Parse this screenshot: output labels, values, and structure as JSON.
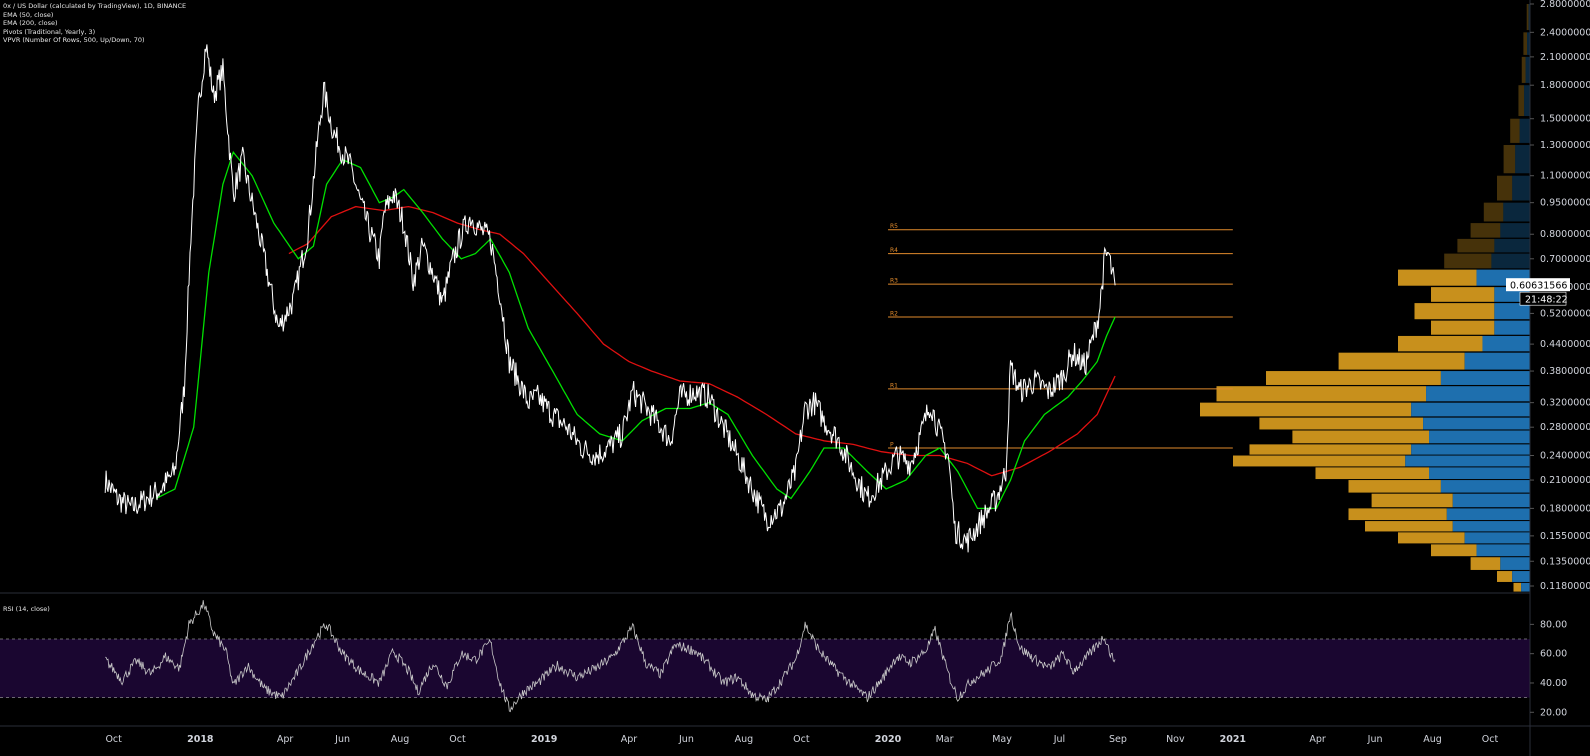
{
  "legend": {
    "symbol": "0x / US Dollar (calculated by TradingView), 1D, BINANCE",
    "ema50": "EMA (50, close)",
    "ema200": "EMA (200, close)",
    "pivots": "Pivots (Traditional, Yearly, 3)",
    "vpvr": "VPVR (Number Of Rows, 500, Up/Down, 70)",
    "rsi": "RSI (14, close)"
  },
  "colors": {
    "price": "#ffffff",
    "ema50": "#00e000",
    "ema200": "#e01010",
    "pivot": "#e08a2c",
    "vpvr_up": "#1e6fae",
    "vpvr_down": "#c8901c",
    "rsi_band": "#1a0630",
    "rsi_line": "#c8c8c8",
    "axis_text": "#d1d4dc",
    "current_price_bg": "#ffffff"
  },
  "chart_data": {
    "type": "line",
    "scale": "log",
    "y_ticks": [
      "2.80000000",
      "2.40000000",
      "2.10000000",
      "1.80000000",
      "1.50000000",
      "1.30000000",
      "1.10000000",
      "0.95000000",
      "0.80000000",
      "0.70000000",
      "0.60000000",
      "0.52000000",
      "0.44000000",
      "0.38000000",
      "0.32000000",
      "0.28000000",
      "0.24000000",
      "0.21000000",
      "0.18000000",
      "0.15500000",
      "0.13500000",
      "0.11800000"
    ],
    "x_ticks": [
      "Oct",
      "2018",
      "Apr",
      "Jun",
      "Aug",
      "Oct",
      "2019",
      "Apr",
      "Jun",
      "Aug",
      "Oct",
      "2020",
      "Mar",
      "May",
      "Jul",
      "Sep",
      "Nov",
      "2021",
      "Apr",
      "Jun",
      "Aug",
      "Oct"
    ],
    "current_price": "0.60631566",
    "countdown": "21:48:22",
    "ylim": [
      0.118,
      2.8
    ],
    "xlim": [
      "2017-09-20",
      "2021-10-20"
    ],
    "price_series": [
      [
        "2017-09-22",
        0.21
      ],
      [
        "2017-10-05",
        0.19
      ],
      [
        "2017-10-20",
        0.18
      ],
      [
        "2017-11-05",
        0.19
      ],
      [
        "2017-11-20",
        0.2
      ],
      [
        "2017-12-05",
        0.22
      ],
      [
        "2017-12-15",
        0.35
      ],
      [
        "2017-12-22",
        0.8
      ],
      [
        "2017-12-30",
        1.6
      ],
      [
        "2018-01-07",
        2.25
      ],
      [
        "2018-01-15",
        1.7
      ],
      [
        "2018-01-25",
        1.95
      ],
      [
        "2018-02-05",
        1.0
      ],
      [
        "2018-02-15",
        1.2
      ],
      [
        "2018-02-25",
        0.95
      ],
      [
        "2018-03-10",
        0.7
      ],
      [
        "2018-03-25",
        0.48
      ],
      [
        "2018-04-10",
        0.56
      ],
      [
        "2018-04-25",
        0.8
      ],
      [
        "2018-05-05",
        1.3
      ],
      [
        "2018-05-12",
        1.75
      ],
      [
        "2018-05-22",
        1.4
      ],
      [
        "2018-06-01",
        1.25
      ],
      [
        "2018-06-10",
        1.15
      ],
      [
        "2018-06-20",
        0.95
      ],
      [
        "2018-07-01",
        0.8
      ],
      [
        "2018-07-10",
        0.7
      ],
      [
        "2018-07-15",
        0.9
      ],
      [
        "2018-07-25",
        1.0
      ],
      [
        "2018-08-05",
        0.85
      ],
      [
        "2018-08-15",
        0.62
      ],
      [
        "2018-08-25",
        0.75
      ],
      [
        "2018-09-05",
        0.65
      ],
      [
        "2018-09-15",
        0.55
      ],
      [
        "2018-09-25",
        0.68
      ],
      [
        "2018-10-05",
        0.8
      ],
      [
        "2018-10-15",
        0.88
      ],
      [
        "2018-10-25",
        0.82
      ],
      [
        "2018-11-05",
        0.78
      ],
      [
        "2018-11-15",
        0.58
      ],
      [
        "2018-11-25",
        0.4
      ],
      [
        "2018-12-05",
        0.36
      ],
      [
        "2018-12-15",
        0.32
      ],
      [
        "2018-12-25",
        0.33
      ],
      [
        "2019-01-10",
        0.3
      ],
      [
        "2019-01-25",
        0.28
      ],
      [
        "2019-02-10",
        0.25
      ],
      [
        "2019-02-25",
        0.24
      ],
      [
        "2019-03-10",
        0.25
      ],
      [
        "2019-03-25",
        0.27
      ],
      [
        "2019-04-05",
        0.34
      ],
      [
        "2019-04-20",
        0.31
      ],
      [
        "2019-05-05",
        0.28
      ],
      [
        "2019-05-15",
        0.26
      ],
      [
        "2019-05-25",
        0.33
      ],
      [
        "2019-06-10",
        0.34
      ],
      [
        "2019-06-25",
        0.33
      ],
      [
        "2019-07-10",
        0.28
      ],
      [
        "2019-07-25",
        0.24
      ],
      [
        "2019-08-10",
        0.2
      ],
      [
        "2019-08-25",
        0.17
      ],
      [
        "2019-09-10",
        0.18
      ],
      [
        "2019-09-25",
        0.22
      ],
      [
        "2019-10-05",
        0.31
      ],
      [
        "2019-10-15",
        0.32
      ],
      [
        "2019-10-25",
        0.29
      ],
      [
        "2019-11-10",
        0.26
      ],
      [
        "2019-11-25",
        0.22
      ],
      [
        "2019-12-10",
        0.19
      ],
      [
        "2019-12-25",
        0.21
      ],
      [
        "2020-01-10",
        0.24
      ],
      [
        "2020-01-25",
        0.23
      ],
      [
        "2020-02-05",
        0.27
      ],
      [
        "2020-02-15",
        0.32
      ],
      [
        "2020-02-25",
        0.27
      ],
      [
        "2020-03-05",
        0.24
      ],
      [
        "2020-03-12",
        0.16
      ],
      [
        "2020-03-25",
        0.15
      ],
      [
        "2020-04-10",
        0.17
      ],
      [
        "2020-04-25",
        0.19
      ],
      [
        "2020-05-05",
        0.22
      ],
      [
        "2020-05-10",
        0.39
      ],
      [
        "2020-05-20",
        0.34
      ],
      [
        "2020-06-05",
        0.36
      ],
      [
        "2020-06-20",
        0.34
      ],
      [
        "2020-07-05",
        0.37
      ],
      [
        "2020-07-15",
        0.42
      ],
      [
        "2020-07-28",
        0.39
      ],
      [
        "2020-08-05",
        0.45
      ],
      [
        "2020-08-12",
        0.52
      ],
      [
        "2020-08-18",
        0.7
      ],
      [
        "2020-08-22",
        0.72
      ],
      [
        "2020-08-26",
        0.64
      ],
      [
        "2020-08-29",
        0.606
      ]
    ],
    "ema50_series": [
      [
        "2017-11-15",
        0.19
      ],
      [
        "2017-12-05",
        0.2
      ],
      [
        "2017-12-25",
        0.28
      ],
      [
        "2018-01-10",
        0.65
      ],
      [
        "2018-01-25",
        1.05
      ],
      [
        "2018-02-05",
        1.25
      ],
      [
        "2018-02-25",
        1.1
      ],
      [
        "2018-03-20",
        0.85
      ],
      [
        "2018-04-15",
        0.7
      ],
      [
        "2018-05-01",
        0.75
      ],
      [
        "2018-05-15",
        1.05
      ],
      [
        "2018-06-01",
        1.2
      ],
      [
        "2018-06-20",
        1.15
      ],
      [
        "2018-07-10",
        0.95
      ],
      [
        "2018-07-25",
        0.98
      ],
      [
        "2018-08-05",
        1.02
      ],
      [
        "2018-08-25",
        0.9
      ],
      [
        "2018-09-15",
        0.78
      ],
      [
        "2018-10-05",
        0.7
      ],
      [
        "2018-10-20",
        0.72
      ],
      [
        "2018-11-05",
        0.78
      ],
      [
        "2018-11-25",
        0.65
      ],
      [
        "2018-12-15",
        0.48
      ],
      [
        "2019-01-10",
        0.38
      ],
      [
        "2019-02-05",
        0.3
      ],
      [
        "2019-03-01",
        0.27
      ],
      [
        "2019-03-25",
        0.26
      ],
      [
        "2019-04-15",
        0.29
      ],
      [
        "2019-05-10",
        0.31
      ],
      [
        "2019-06-05",
        0.31
      ],
      [
        "2019-06-25",
        0.32
      ],
      [
        "2019-07-15",
        0.3
      ],
      [
        "2019-08-10",
        0.24
      ],
      [
        "2019-09-05",
        0.2
      ],
      [
        "2019-09-20",
        0.19
      ],
      [
        "2019-10-10",
        0.22
      ],
      [
        "2019-10-25",
        0.25
      ],
      [
        "2019-11-15",
        0.25
      ],
      [
        "2019-12-10",
        0.22
      ],
      [
        "2019-12-30",
        0.2
      ],
      [
        "2020-01-20",
        0.21
      ],
      [
        "2020-02-10",
        0.24
      ],
      [
        "2020-02-25",
        0.25
      ],
      [
        "2020-03-15",
        0.22
      ],
      [
        "2020-04-05",
        0.18
      ],
      [
        "2020-04-25",
        0.18
      ],
      [
        "2020-05-10",
        0.21
      ],
      [
        "2020-05-25",
        0.26
      ],
      [
        "2020-06-15",
        0.3
      ],
      [
        "2020-07-10",
        0.33
      ],
      [
        "2020-07-25",
        0.36
      ],
      [
        "2020-08-10",
        0.4
      ],
      [
        "2020-08-20",
        0.46
      ],
      [
        "2020-08-29",
        0.51
      ]
    ],
    "ema200_series": [
      [
        "2018-04-05",
        0.72
      ],
      [
        "2018-04-25",
        0.76
      ],
      [
        "2018-05-20",
        0.88
      ],
      [
        "2018-06-15",
        0.93
      ],
      [
        "2018-07-15",
        0.91
      ],
      [
        "2018-08-10",
        0.93
      ],
      [
        "2018-09-05",
        0.9
      ],
      [
        "2018-10-01",
        0.85
      ],
      [
        "2018-10-25",
        0.82
      ],
      [
        "2018-11-15",
        0.8
      ],
      [
        "2018-12-10",
        0.72
      ],
      [
        "2019-01-05",
        0.62
      ],
      [
        "2019-02-05",
        0.52
      ],
      [
        "2019-03-05",
        0.44
      ],
      [
        "2019-04-01",
        0.4
      ],
      [
        "2019-04-25",
        0.38
      ],
      [
        "2019-05-25",
        0.36
      ],
      [
        "2019-06-25",
        0.355
      ],
      [
        "2019-07-25",
        0.33
      ],
      [
        "2019-08-25",
        0.3
      ],
      [
        "2019-09-25",
        0.27
      ],
      [
        "2019-10-25",
        0.26
      ],
      [
        "2019-11-25",
        0.255
      ],
      [
        "2019-12-25",
        0.245
      ],
      [
        "2020-01-25",
        0.24
      ],
      [
        "2020-02-25",
        0.24
      ],
      [
        "2020-03-25",
        0.23
      ],
      [
        "2020-04-20",
        0.215
      ],
      [
        "2020-05-20",
        0.225
      ],
      [
        "2020-06-20",
        0.245
      ],
      [
        "2020-07-20",
        0.27
      ],
      [
        "2020-08-10",
        0.3
      ],
      [
        "2020-08-29",
        0.37
      ]
    ],
    "pivots": [
      {
        "label": "R5",
        "value": 0.82
      },
      {
        "label": "R4",
        "value": 0.72
      },
      {
        "label": "R3",
        "value": 0.61
      },
      {
        "label": "R2",
        "value": 0.51
      },
      {
        "label": "R1",
        "value": 0.345
      },
      {
        "label": "P",
        "value": 0.25
      }
    ],
    "pivot_range": [
      "2020-01-01",
      "2021-01-01"
    ],
    "rsi": {
      "y_ticks": [
        "80.00",
        "60.00",
        "40.00",
        "20.00"
      ],
      "band": [
        30,
        70
      ],
      "ylim": [
        12,
        98
      ],
      "series": [
        [
          "2017-09-22",
          56
        ],
        [
          "2017-10-10",
          42
        ],
        [
          "2017-10-25",
          55
        ],
        [
          "2017-11-10",
          46
        ],
        [
          "2017-11-25",
          58
        ],
        [
          "2017-12-10",
          50
        ],
        [
          "2017-12-20",
          80
        ],
        [
          "2018-01-05",
          94
        ],
        [
          "2018-01-15",
          74
        ],
        [
          "2018-01-28",
          62
        ],
        [
          "2018-02-05",
          38
        ],
        [
          "2018-02-20",
          52
        ],
        [
          "2018-03-10",
          36
        ],
        [
          "2018-03-28",
          30
        ],
        [
          "2018-04-15",
          48
        ],
        [
          "2018-05-05",
          72
        ],
        [
          "2018-05-15",
          80
        ],
        [
          "2018-06-01",
          60
        ],
        [
          "2018-06-20",
          48
        ],
        [
          "2018-07-10",
          40
        ],
        [
          "2018-07-25",
          62
        ],
        [
          "2018-08-10",
          48
        ],
        [
          "2018-08-20",
          34
        ],
        [
          "2018-09-05",
          54
        ],
        [
          "2018-09-20",
          38
        ],
        [
          "2018-10-05",
          60
        ],
        [
          "2018-10-20",
          56
        ],
        [
          "2018-11-05",
          68
        ],
        [
          "2018-11-15",
          40
        ],
        [
          "2018-11-25",
          22
        ],
        [
          "2018-12-10",
          34
        ],
        [
          "2018-12-25",
          40
        ],
        [
          "2019-01-15",
          52
        ],
        [
          "2019-02-05",
          44
        ],
        [
          "2019-02-25",
          50
        ],
        [
          "2019-03-15",
          58
        ],
        [
          "2019-04-05",
          78
        ],
        [
          "2019-04-20",
          52
        ],
        [
          "2019-05-05",
          46
        ],
        [
          "2019-05-20",
          66
        ],
        [
          "2019-06-10",
          62
        ],
        [
          "2019-06-25",
          52
        ],
        [
          "2019-07-10",
          40
        ],
        [
          "2019-07-25",
          44
        ],
        [
          "2019-08-10",
          32
        ],
        [
          "2019-08-25",
          28
        ],
        [
          "2019-09-10",
          42
        ],
        [
          "2019-09-25",
          56
        ],
        [
          "2019-10-05",
          80
        ],
        [
          "2019-10-20",
          62
        ],
        [
          "2019-11-05",
          50
        ],
        [
          "2019-11-25",
          38
        ],
        [
          "2019-12-10",
          30
        ],
        [
          "2019-12-25",
          42
        ],
        [
          "2020-01-10",
          58
        ],
        [
          "2020-01-25",
          54
        ],
        [
          "2020-02-10",
          62
        ],
        [
          "2020-02-20",
          76
        ],
        [
          "2020-03-05",
          46
        ],
        [
          "2020-03-15",
          30
        ],
        [
          "2020-03-30",
          42
        ],
        [
          "2020-04-15",
          48
        ],
        [
          "2020-05-01",
          58
        ],
        [
          "2020-05-10",
          88
        ],
        [
          "2020-05-20",
          64
        ],
        [
          "2020-06-05",
          56
        ],
        [
          "2020-06-20",
          50
        ],
        [
          "2020-07-05",
          60
        ],
        [
          "2020-07-15",
          48
        ],
        [
          "2020-07-28",
          56
        ],
        [
          "2020-08-10",
          66
        ],
        [
          "2020-08-18",
          72
        ],
        [
          "2020-08-25",
          58
        ],
        [
          "2020-08-29",
          56
        ]
      ]
    },
    "vpvr_profile": [
      [
        2.8,
        0.01,
        0.005
      ],
      [
        2.4,
        0.02,
        0.01
      ],
      [
        2.1,
        0.025,
        0.015
      ],
      [
        1.8,
        0.035,
        0.02
      ],
      [
        1.5,
        0.06,
        0.035
      ],
      [
        1.3,
        0.08,
        0.05
      ],
      [
        1.1,
        0.1,
        0.06
      ],
      [
        0.95,
        0.14,
        0.09
      ],
      [
        0.85,
        0.18,
        0.1
      ],
      [
        0.78,
        0.22,
        0.12
      ],
      [
        0.72,
        0.26,
        0.13
      ],
      [
        0.66,
        0.4,
        0.18
      ],
      [
        0.6,
        0.3,
        0.12
      ],
      [
        0.55,
        0.35,
        0.12
      ],
      [
        0.5,
        0.3,
        0.12
      ],
      [
        0.46,
        0.4,
        0.16
      ],
      [
        0.42,
        0.58,
        0.22
      ],
      [
        0.38,
        0.8,
        0.3
      ],
      [
        0.35,
        0.95,
        0.35
      ],
      [
        0.32,
        1.0,
        0.4
      ],
      [
        0.295,
        0.82,
        0.36
      ],
      [
        0.275,
        0.72,
        0.34
      ],
      [
        0.255,
        0.85,
        0.4
      ],
      [
        0.24,
        0.9,
        0.42
      ],
      [
        0.225,
        0.65,
        0.34
      ],
      [
        0.21,
        0.55,
        0.3
      ],
      [
        0.195,
        0.48,
        0.26
      ],
      [
        0.18,
        0.55,
        0.28
      ],
      [
        0.168,
        0.5,
        0.26
      ],
      [
        0.158,
        0.4,
        0.22
      ],
      [
        0.148,
        0.3,
        0.18
      ],
      [
        0.138,
        0.18,
        0.1
      ],
      [
        0.128,
        0.1,
        0.06
      ],
      [
        0.12,
        0.05,
        0.03
      ]
    ]
  }
}
